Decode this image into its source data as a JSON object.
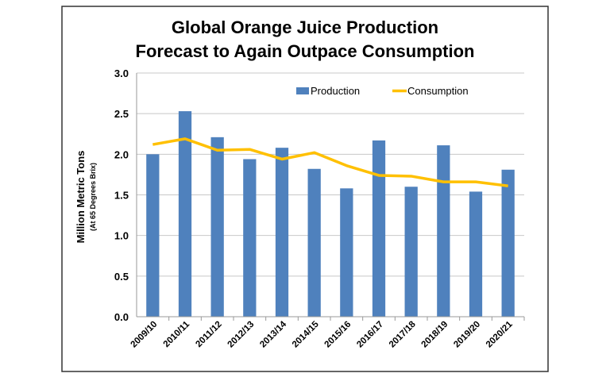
{
  "chart_data": {
    "type": "bar",
    "title": "Global Orange Juice Production",
    "subtitle": "Forecast to Again Outpace Consumption",
    "ylabel": "Million Metric Tons",
    "ylabel_sub": "(At 65 Degrees Brix)",
    "xlabel": "",
    "ylim": [
      0,
      3.0
    ],
    "yticks": [
      "0.0",
      "0.5",
      "1.0",
      "1.5",
      "2.0",
      "2.5",
      "3.0"
    ],
    "grid": true,
    "legend_placement": "top-right",
    "categories": [
      "2009/10",
      "2010/11",
      "2011/12",
      "2012/13",
      "2013/14",
      "2014/15",
      "2015/16",
      "2016/17",
      "2017/18",
      "2018/19",
      "2019/20",
      "2020/21"
    ],
    "series": [
      {
        "name": "Production",
        "type": "bar",
        "color": "#4f81bd",
        "values": [
          2.0,
          2.53,
          2.21,
          1.94,
          2.08,
          1.82,
          1.58,
          2.17,
          1.6,
          2.11,
          1.54,
          1.81
        ]
      },
      {
        "name": "Consumption",
        "type": "line",
        "color": "#ffc000",
        "values": [
          2.12,
          2.19,
          2.05,
          2.06,
          1.94,
          2.02,
          1.86,
          1.74,
          1.73,
          1.66,
          1.66,
          1.61
        ]
      }
    ]
  }
}
